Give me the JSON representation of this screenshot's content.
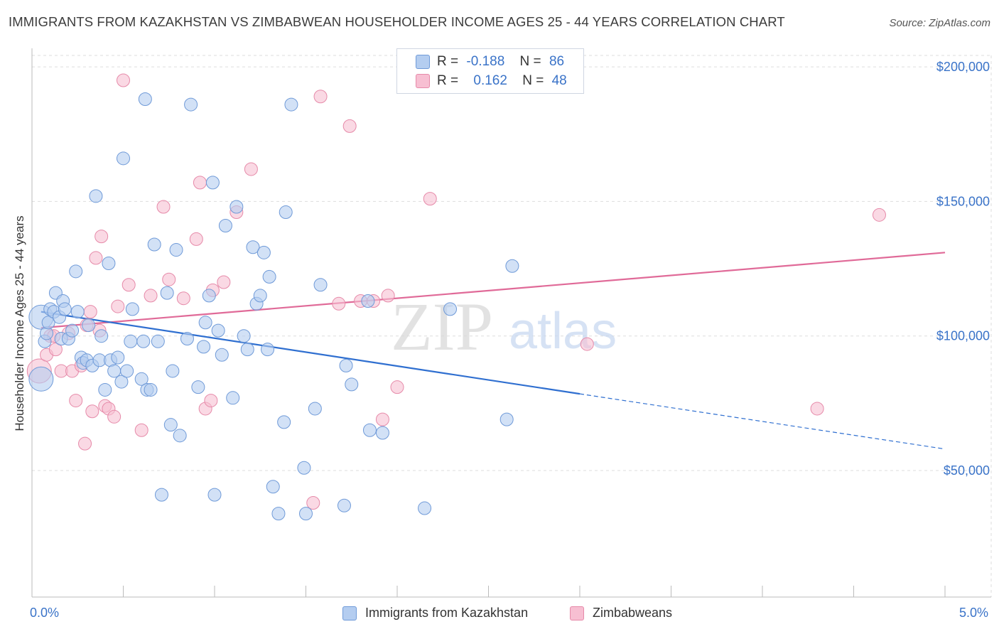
{
  "title": "IMMIGRANTS FROM KAZAKHSTAN VS ZIMBABWEAN HOUSEHOLDER INCOME AGES 25 - 44 YEARS CORRELATION CHART",
  "source": "Source: ZipAtlas.com",
  "watermark": {
    "zip": "ZIP",
    "atlas": "atlas"
  },
  "legend_top": {
    "rows": [
      {
        "r_label": "R =",
        "r_value": "-0.188",
        "n_label": "N =",
        "n_value": "86"
      },
      {
        "r_label": "R =",
        "r_value": "0.162",
        "n_label": "N =",
        "n_value": "48"
      }
    ]
  },
  "colors": {
    "kazakhstan_fill": "#b4cdf0",
    "kazakhstan_stroke": "#6f9ad8",
    "kazakhstan_line": "#2f6fd0",
    "zimbabwe_fill": "#f7bfd2",
    "zimbabwe_stroke": "#e68aa9",
    "zimbabwe_line": "#e06a98",
    "tick_label": "#3a73c8",
    "grid": "#dddddd"
  },
  "chart_data": {
    "type": "scatter",
    "title": "IMMIGRANTS FROM KAZAKHSTAN VS ZIMBABWEAN HOUSEHOLDER INCOME AGES 25 - 44 YEARS CORRELATION CHART",
    "xlabel": "",
    "ylabel": "Householder Income Ages 25 - 44 years",
    "x_unit": "percent",
    "xlim": [
      0,
      5
    ],
    "ylim": [
      3000,
      209000
    ],
    "x_tick_labels": [
      "0.0%",
      "5.0%"
    ],
    "y_ticks": [
      50000,
      100000,
      150000,
      200000
    ],
    "y_tick_labels": [
      "$50,000",
      "$100,000",
      "$150,000",
      "$200,000"
    ],
    "grid": true,
    "legend_position": "bottom",
    "series": [
      {
        "name": "Immigrants from Kazakhstan",
        "R": -0.188,
        "N": 86,
        "trend": {
          "x0": 0.05,
          "y0": 109000,
          "x1": 3.0,
          "y1": 78500,
          "dashed_to_x": 5.0,
          "dashed_to_y": 58000
        },
        "points": [
          {
            "x": 0.05,
            "y": 107000,
            "s": 2
          },
          {
            "x": 0.05,
            "y": 84000,
            "s": 2
          },
          {
            "x": 0.07,
            "y": 98000,
            "s": 1
          },
          {
            "x": 0.08,
            "y": 101000,
            "s": 1
          },
          {
            "x": 0.09,
            "y": 105000,
            "s": 1
          },
          {
            "x": 0.1,
            "y": 110000,
            "s": 1
          },
          {
            "x": 0.12,
            "y": 109000,
            "s": 1
          },
          {
            "x": 0.13,
            "y": 116000,
            "s": 1
          },
          {
            "x": 0.15,
            "y": 107000,
            "s": 1
          },
          {
            "x": 0.16,
            "y": 99000,
            "s": 1
          },
          {
            "x": 0.17,
            "y": 113000,
            "s": 1
          },
          {
            "x": 0.18,
            "y": 110000,
            "s": 1
          },
          {
            "x": 0.2,
            "y": 99000,
            "s": 1
          },
          {
            "x": 0.22,
            "y": 102000,
            "s": 1
          },
          {
            "x": 0.24,
            "y": 124000,
            "s": 1
          },
          {
            "x": 0.25,
            "y": 109000,
            "s": 1
          },
          {
            "x": 0.27,
            "y": 92000,
            "s": 1
          },
          {
            "x": 0.28,
            "y": 90000,
            "s": 1
          },
          {
            "x": 0.3,
            "y": 91000,
            "s": 1
          },
          {
            "x": 0.31,
            "y": 104000,
            "s": 1
          },
          {
            "x": 0.33,
            "y": 89000,
            "s": 1
          },
          {
            "x": 0.35,
            "y": 152000,
            "s": 1
          },
          {
            "x": 0.37,
            "y": 91000,
            "s": 1
          },
          {
            "x": 0.38,
            "y": 100000,
            "s": 1
          },
          {
            "x": 0.4,
            "y": 80000,
            "s": 1
          },
          {
            "x": 0.42,
            "y": 127000,
            "s": 1
          },
          {
            "x": 0.43,
            "y": 91000,
            "s": 1
          },
          {
            "x": 0.45,
            "y": 87000,
            "s": 1
          },
          {
            "x": 0.47,
            "y": 92000,
            "s": 1
          },
          {
            "x": 0.49,
            "y": 83000,
            "s": 1
          },
          {
            "x": 0.5,
            "y": 166000,
            "s": 1
          },
          {
            "x": 0.52,
            "y": 87000,
            "s": 1
          },
          {
            "x": 0.54,
            "y": 98000,
            "s": 1
          },
          {
            "x": 0.55,
            "y": 110000,
            "s": 1
          },
          {
            "x": 0.6,
            "y": 84000,
            "s": 1
          },
          {
            "x": 0.61,
            "y": 98000,
            "s": 1
          },
          {
            "x": 0.62,
            "y": 188000,
            "s": 1
          },
          {
            "x": 0.63,
            "y": 80000,
            "s": 1
          },
          {
            "x": 0.65,
            "y": 80000,
            "s": 1
          },
          {
            "x": 0.67,
            "y": 134000,
            "s": 1
          },
          {
            "x": 0.69,
            "y": 98000,
            "s": 1
          },
          {
            "x": 0.71,
            "y": 41000,
            "s": 1
          },
          {
            "x": 0.74,
            "y": 116000,
            "s": 1
          },
          {
            "x": 0.76,
            "y": 67000,
            "s": 1
          },
          {
            "x": 0.77,
            "y": 87000,
            "s": 1
          },
          {
            "x": 0.79,
            "y": 132000,
            "s": 1
          },
          {
            "x": 0.81,
            "y": 63000,
            "s": 1
          },
          {
            "x": 0.85,
            "y": 99000,
            "s": 1
          },
          {
            "x": 0.87,
            "y": 186000,
            "s": 1
          },
          {
            "x": 0.91,
            "y": 81000,
            "s": 1
          },
          {
            "x": 0.94,
            "y": 96000,
            "s": 1
          },
          {
            "x": 0.95,
            "y": 105000,
            "s": 1
          },
          {
            "x": 0.97,
            "y": 115000,
            "s": 1
          },
          {
            "x": 0.99,
            "y": 157000,
            "s": 1
          },
          {
            "x": 1.0,
            "y": 41000,
            "s": 1
          },
          {
            "x": 1.02,
            "y": 102000,
            "s": 1
          },
          {
            "x": 1.04,
            "y": 93000,
            "s": 1
          },
          {
            "x": 1.06,
            "y": 141000,
            "s": 1
          },
          {
            "x": 1.1,
            "y": 77000,
            "s": 1
          },
          {
            "x": 1.12,
            "y": 148000,
            "s": 1
          },
          {
            "x": 1.16,
            "y": 100000,
            "s": 1
          },
          {
            "x": 1.18,
            "y": 95000,
            "s": 1
          },
          {
            "x": 1.21,
            "y": 133000,
            "s": 1
          },
          {
            "x": 1.23,
            "y": 112000,
            "s": 1
          },
          {
            "x": 1.25,
            "y": 115000,
            "s": 1
          },
          {
            "x": 1.27,
            "y": 131000,
            "s": 1
          },
          {
            "x": 1.29,
            "y": 95000,
            "s": 1
          },
          {
            "x": 1.3,
            "y": 122000,
            "s": 1
          },
          {
            "x": 1.32,
            "y": 44000,
            "s": 1
          },
          {
            "x": 1.35,
            "y": 34000,
            "s": 1
          },
          {
            "x": 1.38,
            "y": 68000,
            "s": 1
          },
          {
            "x": 1.39,
            "y": 146000,
            "s": 1
          },
          {
            "x": 1.42,
            "y": 186000,
            "s": 1
          },
          {
            "x": 1.49,
            "y": 51000,
            "s": 1
          },
          {
            "x": 1.5,
            "y": 34000,
            "s": 1
          },
          {
            "x": 1.55,
            "y": 73000,
            "s": 1
          },
          {
            "x": 1.58,
            "y": 119000,
            "s": 1
          },
          {
            "x": 1.72,
            "y": 89000,
            "s": 1
          },
          {
            "x": 1.71,
            "y": 37000,
            "s": 1
          },
          {
            "x": 1.75,
            "y": 82000,
            "s": 1
          },
          {
            "x": 1.84,
            "y": 113000,
            "s": 1
          },
          {
            "x": 1.85,
            "y": 65000,
            "s": 1
          },
          {
            "x": 1.92,
            "y": 64000,
            "s": 1
          },
          {
            "x": 2.15,
            "y": 36000,
            "s": 1
          },
          {
            "x": 2.29,
            "y": 110000,
            "s": 1
          },
          {
            "x": 2.6,
            "y": 69000,
            "s": 1
          },
          {
            "x": 2.63,
            "y": 126000,
            "s": 1
          }
        ]
      },
      {
        "name": "Zimbabweans",
        "R": 0.162,
        "N": 48,
        "trend": {
          "x0": 0.05,
          "y0": 103000,
          "x1": 5.0,
          "y1": 131000
        },
        "points": [
          {
            "x": 0.04,
            "y": 87000,
            "s": 2
          },
          {
            "x": 0.08,
            "y": 93000,
            "s": 1
          },
          {
            "x": 0.1,
            "y": 100000,
            "s": 1
          },
          {
            "x": 0.12,
            "y": 100000,
            "s": 1
          },
          {
            "x": 0.13,
            "y": 95000,
            "s": 1
          },
          {
            "x": 0.16,
            "y": 87000,
            "s": 1
          },
          {
            "x": 0.2,
            "y": 101000,
            "s": 1
          },
          {
            "x": 0.22,
            "y": 87000,
            "s": 1
          },
          {
            "x": 0.24,
            "y": 76000,
            "s": 1
          },
          {
            "x": 0.27,
            "y": 89000,
            "s": 1
          },
          {
            "x": 0.29,
            "y": 60000,
            "s": 1
          },
          {
            "x": 0.3,
            "y": 104000,
            "s": 1
          },
          {
            "x": 0.32,
            "y": 109000,
            "s": 1
          },
          {
            "x": 0.33,
            "y": 72000,
            "s": 1
          },
          {
            "x": 0.35,
            "y": 129000,
            "s": 1
          },
          {
            "x": 0.37,
            "y": 102000,
            "s": 1
          },
          {
            "x": 0.38,
            "y": 137000,
            "s": 1
          },
          {
            "x": 0.4,
            "y": 74000,
            "s": 1
          },
          {
            "x": 0.42,
            "y": 73000,
            "s": 1
          },
          {
            "x": 0.45,
            "y": 70000,
            "s": 1
          },
          {
            "x": 0.47,
            "y": 111000,
            "s": 1
          },
          {
            "x": 0.5,
            "y": 195000,
            "s": 1
          },
          {
            "x": 0.53,
            "y": 119000,
            "s": 1
          },
          {
            "x": 0.6,
            "y": 65000,
            "s": 1
          },
          {
            "x": 0.65,
            "y": 115000,
            "s": 1
          },
          {
            "x": 0.72,
            "y": 148000,
            "s": 1
          },
          {
            "x": 0.75,
            "y": 121000,
            "s": 1
          },
          {
            "x": 0.83,
            "y": 114000,
            "s": 1
          },
          {
            "x": 0.9,
            "y": 136000,
            "s": 1
          },
          {
            "x": 0.92,
            "y": 157000,
            "s": 1
          },
          {
            "x": 0.95,
            "y": 73000,
            "s": 1
          },
          {
            "x": 0.98,
            "y": 76000,
            "s": 1
          },
          {
            "x": 0.99,
            "y": 117000,
            "s": 1
          },
          {
            "x": 1.05,
            "y": 120000,
            "s": 1
          },
          {
            "x": 1.12,
            "y": 146000,
            "s": 1
          },
          {
            "x": 1.2,
            "y": 162000,
            "s": 1
          },
          {
            "x": 1.54,
            "y": 38000,
            "s": 1
          },
          {
            "x": 1.58,
            "y": 189000,
            "s": 1
          },
          {
            "x": 1.68,
            "y": 112000,
            "s": 1
          },
          {
            "x": 1.74,
            "y": 178000,
            "s": 1
          },
          {
            "x": 1.8,
            "y": 113000,
            "s": 1
          },
          {
            "x": 1.87,
            "y": 113000,
            "s": 1
          },
          {
            "x": 1.92,
            "y": 69000,
            "s": 1
          },
          {
            "x": 1.95,
            "y": 115000,
            "s": 1
          },
          {
            "x": 2.0,
            "y": 81000,
            "s": 1
          },
          {
            "x": 2.18,
            "y": 151000,
            "s": 1
          },
          {
            "x": 3.04,
            "y": 97000,
            "s": 1
          },
          {
            "x": 4.3,
            "y": 73000,
            "s": 1
          },
          {
            "x": 4.64,
            "y": 145000,
            "s": 1
          }
        ]
      }
    ]
  },
  "legend_bottom": [
    "Immigrants from Kazakhstan",
    "Zimbabweans"
  ]
}
